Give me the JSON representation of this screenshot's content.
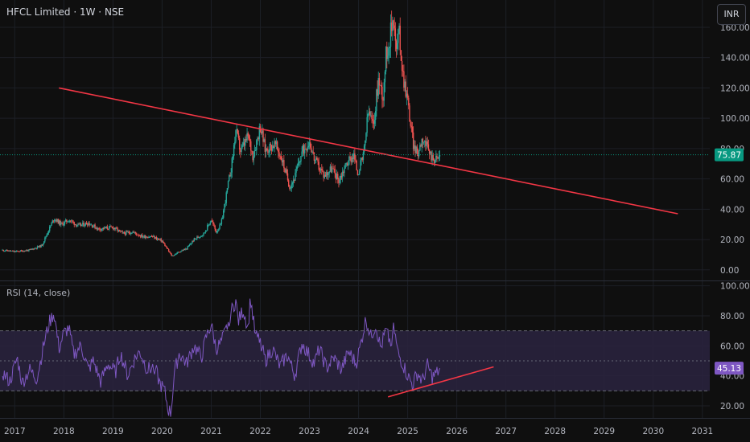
{
  "header": {
    "title": "HFCL Limited · 1W · NSE",
    "currency": "INR"
  },
  "rsi_panel": {
    "title": "RSI (14, close)"
  },
  "colors": {
    "up": "#26a69a",
    "down": "#ef5350",
    "trendline": "#f23645",
    "rsi_line": "#7e57c2",
    "rsi_band": "#2a2340",
    "price_tag": "#089981",
    "rsi_tag": "#7e57c2"
  },
  "chart_data": [
    {
      "type": "candlestick",
      "x_ticks": [
        "2017",
        "2018",
        "2019",
        "2020",
        "2021",
        "2022",
        "2023",
        "2024",
        "2025",
        "2026",
        "2027",
        "2028",
        "2029",
        "2030",
        "2031"
      ],
      "y_ticks": [
        "0.00",
        "20.00",
        "40.00",
        "60.00",
        "80.00",
        "100.00",
        "120.00",
        "140.00",
        "160.00"
      ],
      "ylim": [
        -7,
        178
      ],
      "last_price": "75.87",
      "last_value": 75.87,
      "price_path": [
        [
          2016.75,
          13
        ],
        [
          2017.0,
          12
        ],
        [
          2017.3,
          13
        ],
        [
          2017.55,
          16
        ],
        [
          2017.7,
          27
        ],
        [
          2017.8,
          34
        ],
        [
          2017.95,
          30
        ],
        [
          2018.1,
          33
        ],
        [
          2018.3,
          29
        ],
        [
          2018.5,
          31
        ],
        [
          2018.7,
          27
        ],
        [
          2019.0,
          28
        ],
        [
          2019.2,
          24
        ],
        [
          2019.4,
          25
        ],
        [
          2019.6,
          22
        ],
        [
          2019.8,
          22
        ],
        [
          2020.0,
          19
        ],
        [
          2020.1,
          14
        ],
        [
          2020.2,
          9
        ],
        [
          2020.35,
          12
        ],
        [
          2020.5,
          14
        ],
        [
          2020.65,
          20
        ],
        [
          2020.85,
          24
        ],
        [
          2021.0,
          33
        ],
        [
          2021.1,
          25
        ],
        [
          2021.2,
          30
        ],
        [
          2021.3,
          48
        ],
        [
          2021.42,
          70
        ],
        [
          2021.5,
          92
        ],
        [
          2021.6,
          78
        ],
        [
          2021.75,
          88
        ],
        [
          2021.85,
          75
        ],
        [
          2022.0,
          95
        ],
        [
          2022.1,
          79
        ],
        [
          2022.3,
          83
        ],
        [
          2022.45,
          72
        ],
        [
          2022.5,
          66
        ],
        [
          2022.6,
          55
        ],
        [
          2022.7,
          61
        ],
        [
          2022.85,
          78
        ],
        [
          2023.0,
          85
        ],
        [
          2023.1,
          73
        ],
        [
          2023.3,
          62
        ],
        [
          2023.45,
          67
        ],
        [
          2023.6,
          59
        ],
        [
          2023.75,
          70
        ],
        [
          2023.9,
          76
        ],
        [
          2023.98,
          64
        ],
        [
          2024.1,
          75
        ],
        [
          2024.2,
          105
        ],
        [
          2024.3,
          94
        ],
        [
          2024.4,
          125
        ],
        [
          2024.5,
          115
        ],
        [
          2024.55,
          140
        ],
        [
          2024.62,
          150
        ],
        [
          2024.68,
          162
        ],
        [
          2024.72,
          170
        ],
        [
          2024.76,
          142
        ],
        [
          2024.82,
          158
        ],
        [
          2024.9,
          130
        ],
        [
          2025.0,
          112
        ],
        [
          2025.05,
          98
        ],
        [
          2025.12,
          82
        ],
        [
          2025.2,
          76
        ],
        [
          2025.3,
          88
        ],
        [
          2025.4,
          80
        ],
        [
          2025.5,
          74
        ],
        [
          2025.6,
          73
        ],
        [
          2025.67,
          75.87
        ]
      ],
      "annotations": [
        {
          "type": "trendline",
          "from": [
            2017.9,
            120
          ],
          "to": [
            2030.5,
            37
          ]
        }
      ]
    },
    {
      "type": "line",
      "series_label": "RSI (14, close)",
      "y_ticks": [
        "20.00",
        "40.00",
        "60.00",
        "80.00",
        "100.00"
      ],
      "ylim": [
        12,
        103
      ],
      "levels": [
        70,
        50,
        30
      ],
      "last_value_text": "45.13",
      "last_value": 45.13,
      "rsi_path": [
        [
          2016.75,
          42
        ],
        [
          2016.9,
          36
        ],
        [
          2017.05,
          52
        ],
        [
          2017.15,
          35
        ],
        [
          2017.3,
          44
        ],
        [
          2017.45,
          38
        ],
        [
          2017.6,
          62
        ],
        [
          2017.7,
          75
        ],
        [
          2017.8,
          82
        ],
        [
          2017.9,
          58
        ],
        [
          2018.0,
          68
        ],
        [
          2018.1,
          72
        ],
        [
          2018.2,
          54
        ],
        [
          2018.35,
          60
        ],
        [
          2018.5,
          44
        ],
        [
          2018.6,
          50
        ],
        [
          2018.75,
          36
        ],
        [
          2018.9,
          48
        ],
        [
          2019.05,
          42
        ],
        [
          2019.15,
          55
        ],
        [
          2019.3,
          40
        ],
        [
          2019.45,
          52
        ],
        [
          2019.55,
          56
        ],
        [
          2019.7,
          44
        ],
        [
          2019.85,
          46
        ],
        [
          2019.95,
          35
        ],
        [
          2020.05,
          30
        ],
        [
          2020.12,
          18
        ],
        [
          2020.18,
          15
        ],
        [
          2020.25,
          42
        ],
        [
          2020.35,
          55
        ],
        [
          2020.5,
          48
        ],
        [
          2020.65,
          60
        ],
        [
          2020.8,
          52
        ],
        [
          2020.9,
          66
        ],
        [
          2021.0,
          74
        ],
        [
          2021.1,
          58
        ],
        [
          2021.2,
          62
        ],
        [
          2021.3,
          70
        ],
        [
          2021.4,
          82
        ],
        [
          2021.5,
          90
        ],
        [
          2021.55,
          76
        ],
        [
          2021.65,
          84
        ],
        [
          2021.75,
          72
        ],
        [
          2021.8,
          92
        ],
        [
          2021.9,
          66
        ],
        [
          2022.0,
          64
        ],
        [
          2022.1,
          50
        ],
        [
          2022.25,
          58
        ],
        [
          2022.4,
          46
        ],
        [
          2022.55,
          54
        ],
        [
          2022.7,
          40
        ],
        [
          2022.85,
          62
        ],
        [
          2022.95,
          56
        ],
        [
          2023.1,
          48
        ],
        [
          2023.2,
          58
        ],
        [
          2023.35,
          45
        ],
        [
          2023.5,
          52
        ],
        [
          2023.65,
          44
        ],
        [
          2023.8,
          56
        ],
        [
          2023.95,
          48
        ],
        [
          2024.05,
          62
        ],
        [
          2024.15,
          78
        ],
        [
          2024.25,
          66
        ],
        [
          2024.35,
          74
        ],
        [
          2024.45,
          58
        ],
        [
          2024.55,
          70
        ],
        [
          2024.65,
          62
        ],
        [
          2024.72,
          72
        ],
        [
          2024.8,
          55
        ],
        [
          2024.9,
          48
        ],
        [
          2025.0,
          40
        ],
        [
          2025.1,
          34
        ],
        [
          2025.2,
          42
        ],
        [
          2025.3,
          36
        ],
        [
          2025.4,
          47
        ],
        [
          2025.5,
          39
        ],
        [
          2025.6,
          42
        ],
        [
          2025.67,
          45.13
        ]
      ],
      "annotations": [
        {
          "type": "trendline",
          "from": [
            2024.6,
            26
          ],
          "to": [
            2026.75,
            46
          ]
        }
      ]
    }
  ]
}
